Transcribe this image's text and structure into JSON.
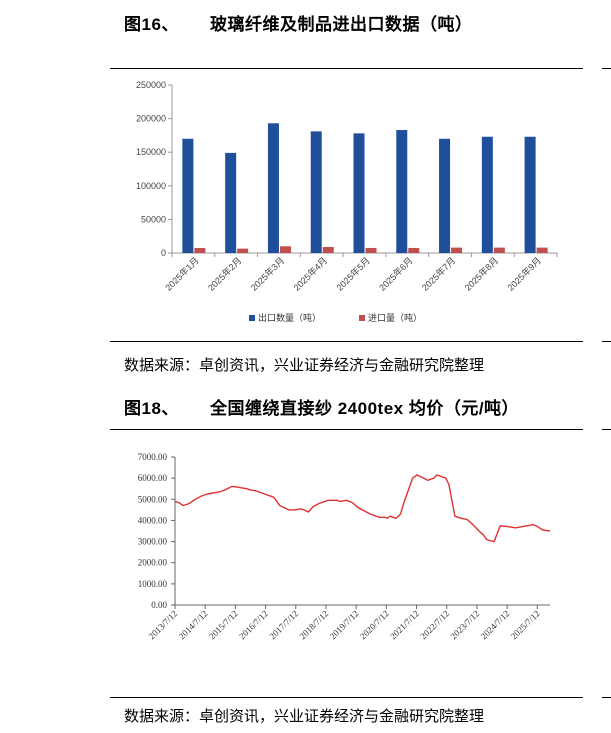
{
  "figures": [
    {
      "number": "图16、",
      "title": "玻璃纤维及制品进出口数据（吨）",
      "source": "数据来源：卓创资讯，兴业证券经济与金融研究院整理"
    },
    {
      "number": "图18、",
      "title": "全国缠绕直接纱 2400tex 均价（元/吨）",
      "source": "数据来源：卓创资讯，兴业证券经济与金融研究院整理"
    }
  ],
  "chart_data": [
    {
      "type": "bar",
      "title": "",
      "categories": [
        "2025年1月",
        "2025年2月",
        "2025年3月",
        "2025年4月",
        "2025年5月",
        "2025年6月",
        "2025年7月",
        "2025年8月",
        "2025年9月"
      ],
      "series": [
        {
          "name": "出口数量（吨）",
          "color": "#1F4E9A",
          "values": [
            170000,
            149000,
            193000,
            181000,
            178000,
            183000,
            170000,
            173000,
            173000
          ]
        },
        {
          "name": "进口量（吨）",
          "color": "#C0504D",
          "values": [
            7500,
            6500,
            10000,
            9000,
            7500,
            7500,
            8000,
            8000,
            8000
          ]
        }
      ],
      "yticks": [
        "0",
        "50000",
        "100000",
        "150000",
        "200000",
        "250000"
      ],
      "ylim": [
        0,
        250000
      ],
      "legend_position": "bottom"
    },
    {
      "type": "line",
      "title": "",
      "xticks": [
        "2013/7/12",
        "2014/7/12",
        "2015/7/12",
        "2016/7/12",
        "2017/7/12",
        "2018/7/12",
        "2019/7/12",
        "2020/7/12",
        "2021/7/12",
        "2022/7/12",
        "2023/7/12",
        "2024/7/12",
        "2025/7/12"
      ],
      "yticks": [
        "0.00",
        "1000.00",
        "2000.00",
        "3000.00",
        "4000.00",
        "5000.00",
        "6000.00",
        "7000.00"
      ],
      "ylim": [
        0,
        7000
      ],
      "xlim": [
        2013.53,
        2025.95
      ],
      "series": [
        {
          "name": "全国缠绕直接纱2400tex均价",
          "color": "#E03030",
          "x": [
            2013.53,
            2013.65,
            2013.8,
            2014.0,
            2014.2,
            2014.4,
            2014.6,
            2014.8,
            2015.0,
            2015.2,
            2015.4,
            2015.5,
            2015.7,
            2015.9,
            2016.0,
            2016.2,
            2016.4,
            2016.6,
            2016.8,
            2017.0,
            2017.3,
            2017.5,
            2017.7,
            2017.8,
            2017.95,
            2018.1,
            2018.3,
            2018.6,
            2018.9,
            2019.0,
            2019.2,
            2019.4,
            2019.6,
            2019.8,
            2020.0,
            2020.2,
            2020.3,
            2020.4,
            2020.5,
            2020.55,
            2020.65,
            2020.75,
            2020.85,
            2021.0,
            2021.1,
            2021.2,
            2021.3,
            2021.4,
            2021.55,
            2021.7,
            2021.9,
            2022.1,
            2022.2,
            2022.3,
            2022.4,
            2022.5,
            2022.6,
            2022.8,
            2023.0,
            2023.2,
            2023.4,
            2023.6,
            2023.75,
            2023.85,
            2023.95,
            2024.1,
            2024.3,
            2024.6,
            2024.8,
            2025.0,
            2025.2,
            2025.4,
            2025.55,
            2025.7,
            2025.95
          ],
          "y": [
            4900,
            4850,
            4700,
            4800,
            5000,
            5150,
            5250,
            5300,
            5350,
            5450,
            5600,
            5600,
            5550,
            5500,
            5450,
            5400,
            5300,
            5200,
            5100,
            4700,
            4500,
            4500,
            4550,
            4500,
            4400,
            4650,
            4800,
            4950,
            4950,
            4900,
            4950,
            4850,
            4600,
            4450,
            4300,
            4200,
            4150,
            4150,
            4150,
            4100,
            4200,
            4150,
            4100,
            4300,
            4800,
            5200,
            5600,
            6000,
            6150,
            6050,
            5900,
            6000,
            6150,
            6100,
            6050,
            6000,
            5700,
            4200,
            4100,
            4050,
            3800,
            3500,
            3300,
            3100,
            3050,
            3000,
            3750,
            3700,
            3650,
            3700,
            3750,
            3800,
            3700,
            3550,
            3500
          ]
        }
      ]
    }
  ]
}
